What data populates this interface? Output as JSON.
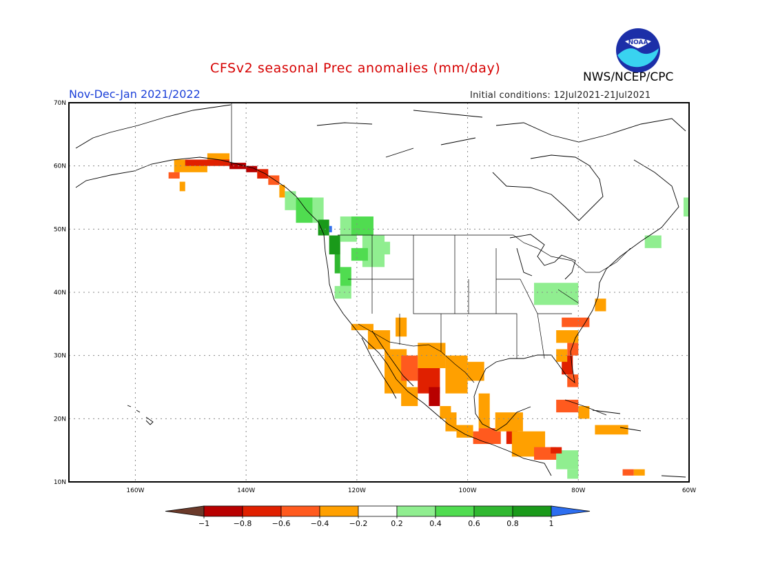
{
  "title": "CFSv2 seasonal Prec anomalies (mm/day)",
  "period": "Nov-Dec-Jan 2021/2022",
  "initial_conditions": "Initial conditions: 12Jul2021-21Jul2021",
  "agency": "NWS/NCEP/CPC",
  "logo_text": "NOAA",
  "map": {
    "projection": "lat-lon",
    "lon_range": [
      -172,
      -60
    ],
    "lat_range": [
      10,
      70
    ],
    "gridlines": "dotted",
    "lat_ticks": [
      {
        "value": 70,
        "label": "70N"
      },
      {
        "value": 60,
        "label": "60N"
      },
      {
        "value": 50,
        "label": "50N"
      },
      {
        "value": 40,
        "label": "40N"
      },
      {
        "value": 30,
        "label": "30N"
      },
      {
        "value": 20,
        "label": "20N"
      },
      {
        "value": 10,
        "label": "10N"
      }
    ],
    "lon_ticks": [
      {
        "value": -160,
        "label": "160W"
      },
      {
        "value": -140,
        "label": "140W"
      },
      {
        "value": -120,
        "label": "120W"
      },
      {
        "value": -100,
        "label": "100W"
      },
      {
        "value": -80,
        "label": "80W"
      },
      {
        "value": -60,
        "label": "60W"
      }
    ]
  },
  "colorbar": {
    "labels": [
      "-1",
      "-0.8",
      "-0.6",
      "-0.4",
      "-0.2",
      "0.2",
      "0.4",
      "0.6",
      "0.8",
      "1"
    ],
    "colors": [
      "#6b3a2a",
      "#b80000",
      "#e02000",
      "#ff5a1e",
      "#ffa000",
      "#ffffff",
      "#90ee90",
      "#50dc50",
      "#30b830",
      "#1a9a1a",
      "#2d6ef0"
    ]
  },
  "chart_data": {
    "type": "heatmap",
    "variable": "Precipitation anomaly",
    "units": "mm/day",
    "note": "cells: [lon_west, lat_south, lon_east, lat_north, anomaly]",
    "cells": [
      [
        -153,
        59,
        -147,
        61,
        -0.4
      ],
      [
        -154,
        58,
        -152,
        59,
        -0.5
      ],
      [
        -152,
        56,
        -151,
        57.5,
        -0.4
      ],
      [
        -147,
        61,
        -143,
        62,
        -0.4
      ],
      [
        -151,
        60,
        -143,
        61,
        -0.8
      ],
      [
        -143,
        59.5,
        -140,
        60.5,
        -0.9
      ],
      [
        -140,
        59,
        -138,
        60,
        -1.0
      ],
      [
        -138,
        58,
        -136,
        59.5,
        -0.8
      ],
      [
        -136,
        57,
        -134,
        58.5,
        -0.5
      ],
      [
        -134,
        55,
        -133,
        57,
        -0.4
      ],
      [
        -133,
        53,
        -131,
        56,
        0.3
      ],
      [
        -131,
        51,
        -128,
        55,
        0.5
      ],
      [
        -128,
        51,
        -126,
        55,
        0.3
      ],
      [
        -127,
        49,
        -125,
        51.5,
        0.8
      ],
      [
        -125,
        49.5,
        -124.5,
        50.5,
        1.1
      ],
      [
        -125,
        46,
        -123,
        49,
        0.8
      ],
      [
        -124,
        43,
        -123,
        46,
        0.7
      ],
      [
        -123,
        41,
        -121,
        44,
        0.4
      ],
      [
        -124,
        39,
        -121,
        41,
        0.3
      ],
      [
        -123,
        48,
        -120,
        52,
        0.3
      ],
      [
        -121,
        49,
        -117,
        52,
        0.4
      ],
      [
        -119,
        44,
        -115,
        49,
        0.3
      ],
      [
        -116,
        46,
        -114,
        48,
        0.3
      ],
      [
        -121,
        45,
        -118,
        47,
        0.5
      ],
      [
        -88,
        38,
        -80,
        41.5,
        0.3
      ],
      [
        -61,
        52,
        -59,
        55,
        0.3
      ],
      [
        -68,
        47,
        -65,
        49,
        0.3
      ],
      [
        -84,
        12,
        -80,
        15,
        0.3
      ],
      [
        -82,
        10.5,
        -80,
        12,
        0.3
      ],
      [
        -121,
        34,
        -117,
        35,
        -0.4
      ],
      [
        -118,
        31,
        -114,
        34,
        -0.4
      ],
      [
        -115,
        24,
        -111,
        31,
        -0.4
      ],
      [
        -112,
        22,
        -109,
        25,
        -0.4
      ],
      [
        -113,
        33,
        -111,
        36,
        -0.4
      ],
      [
        -109,
        28,
        -104,
        32,
        -0.4
      ],
      [
        -104,
        24,
        -100,
        30,
        -0.4
      ],
      [
        -100,
        26,
        -97,
        29,
        -0.4
      ],
      [
        -112,
        26,
        -109,
        30,
        -0.6
      ],
      [
        -109,
        24,
        -105,
        28,
        -0.8
      ],
      [
        -107,
        22,
        -105,
        25,
        -1.0
      ],
      [
        -105,
        20,
        -103,
        22,
        -0.4
      ],
      [
        -102,
        17,
        -99,
        19,
        -0.4
      ],
      [
        -99,
        16,
        -94,
        18,
        -0.6
      ],
      [
        -98,
        18.5,
        -96,
        24,
        -0.4
      ],
      [
        -95,
        18,
        -90,
        21,
        -0.4
      ],
      [
        -93,
        16,
        -91,
        18,
        -0.8
      ],
      [
        -92,
        14,
        -86,
        18,
        -0.4
      ],
      [
        -88,
        13.5,
        -84,
        15.5,
        -0.5
      ],
      [
        -85,
        14.5,
        -83,
        15.5,
        -0.8
      ],
      [
        -84,
        32,
        -80,
        34,
        -0.4
      ],
      [
        -83,
        34.5,
        -78,
        36,
        -0.6
      ],
      [
        -82,
        30,
        -80,
        32,
        -0.6
      ],
      [
        -83,
        27,
        -81,
        30,
        -0.8
      ],
      [
        -82,
        25,
        -80,
        27,
        -0.6
      ],
      [
        -84,
        29,
        -82,
        31,
        -0.4
      ],
      [
        -77,
        37,
        -75,
        39,
        -0.4
      ],
      [
        -84,
        21,
        -80,
        23,
        -0.6
      ],
      [
        -80,
        20,
        -78,
        22,
        -0.4
      ],
      [
        -77,
        17.5,
        -71,
        19,
        -0.4
      ],
      [
        -70,
        11,
        -68,
        12,
        -0.4
      ],
      [
        -72,
        11,
        -70,
        12,
        -0.6
      ],
      [
        -98,
        17,
        -95,
        18.5,
        -0.5
      ],
      [
        -104,
        18,
        -102,
        21,
        -0.4
      ]
    ]
  }
}
